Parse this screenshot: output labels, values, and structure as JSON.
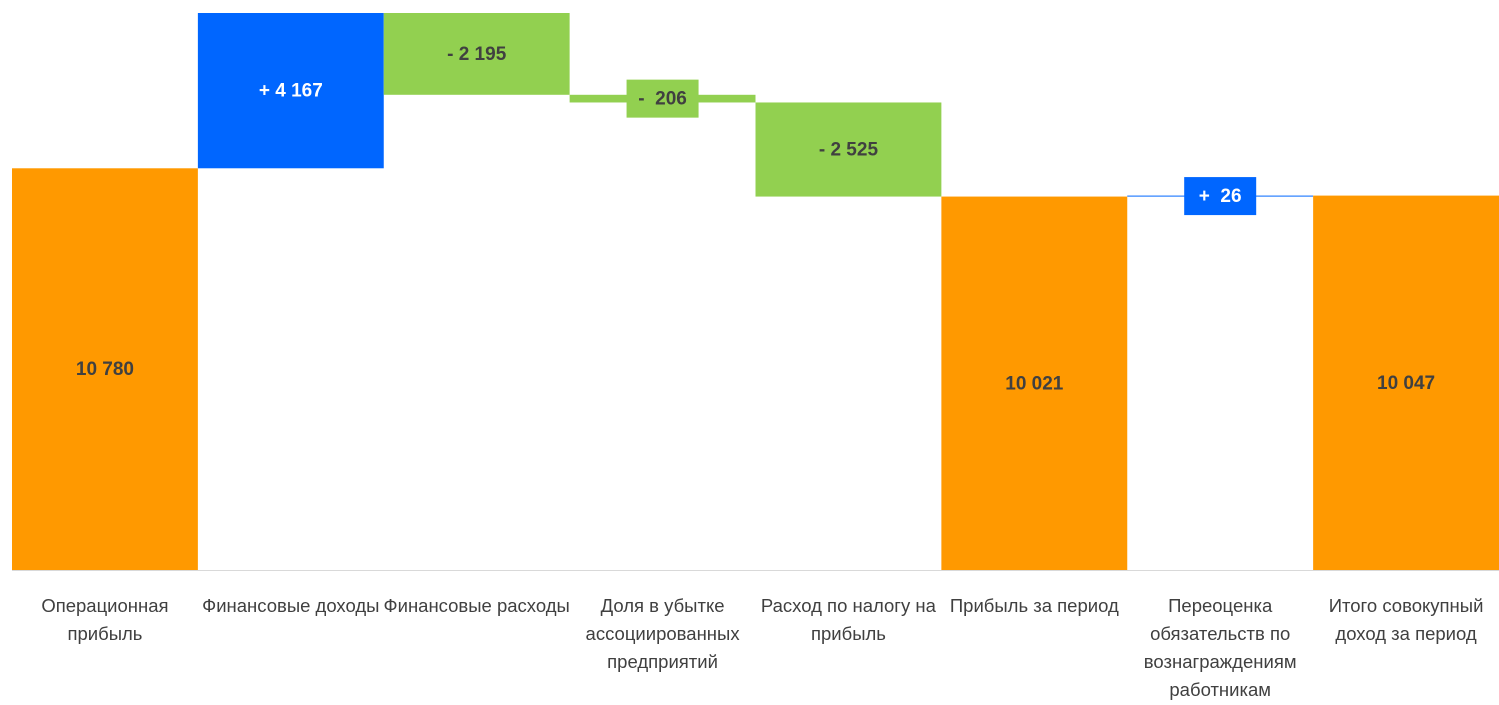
{
  "chart_data": {
    "type": "waterfall",
    "categories": [
      "Операционная прибыль",
      "Финансовые доходы",
      "Финансовые расходы",
      "Доля в убытке ассоциированных предприятий",
      "Расход по налогу на прибыль",
      "Прибыль за период",
      "Переоценка обязательств по вознаграждениям работникам",
      "Итого совокупный доход за период"
    ],
    "values": [
      10780,
      4167,
      -2195,
      -206,
      -2525,
      10021,
      26,
      10047
    ],
    "value_labels": [
      "10 780",
      "+ 4 167",
      "- 2 195",
      "-  206",
      "- 2 525",
      "10 021",
      "+  26",
      "10 047"
    ],
    "measure": [
      "total",
      "relative",
      "relative",
      "relative",
      "relative",
      "total",
      "relative",
      "total"
    ],
    "colors": {
      "total": "#ff9900",
      "increase": "#0066ff",
      "decrease": "#92d050"
    }
  }
}
